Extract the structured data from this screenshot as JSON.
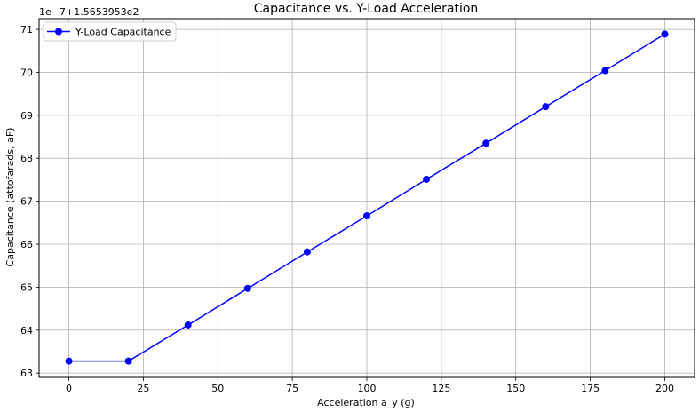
{
  "chart_data": {
    "type": "line",
    "title": "Capacitance vs. Y-Load Acceleration",
    "xlabel": "Acceleration a_y (g)",
    "ylabel": "Capacitance (attofarads, aF)",
    "offset_text": "1e−7+1.5653953e2",
    "xlim": [
      -10,
      210
    ],
    "ylim": [
      62.9,
      71.25
    ],
    "xticks": [
      0,
      25,
      50,
      75,
      100,
      125,
      150,
      175,
      200
    ],
    "yticks": [
      63,
      64,
      65,
      66,
      67,
      68,
      69,
      70,
      71
    ],
    "grid": true,
    "legend_position": "upper-left",
    "series": [
      {
        "name": "Y-Load Capacitance",
        "color": "#0000ff",
        "marker": "circle",
        "x": [
          0,
          20,
          40,
          60,
          80,
          100,
          120,
          140,
          160,
          180,
          200
        ],
        "y": [
          63.28,
          63.28,
          64.12,
          64.97,
          65.82,
          66.66,
          67.51,
          68.35,
          69.2,
          70.04,
          70.89
        ]
      }
    ]
  }
}
